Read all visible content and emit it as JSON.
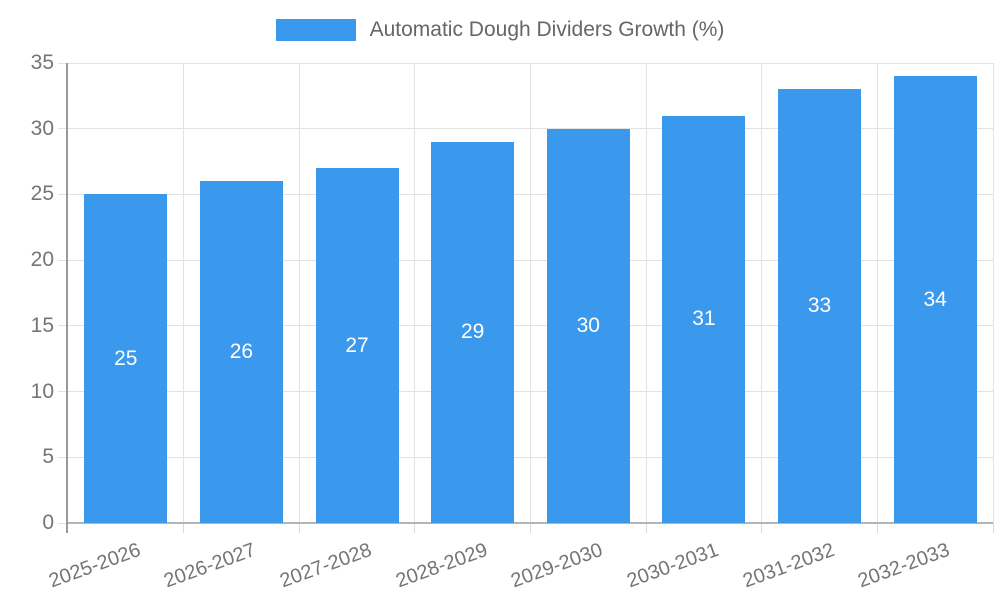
{
  "chart_data": {
    "type": "bar",
    "title": "Automatic Dough Dividers Growth (%)",
    "legend": "Automatic Dough Dividers Growth (%)",
    "legend_position": "top",
    "categories": [
      "2025-2026",
      "2026-2027",
      "2027-2028",
      "2028-2029",
      "2029-2030",
      "2030-2031",
      "2031-2032",
      "2032-2033"
    ],
    "values": [
      25,
      26,
      27,
      29,
      30,
      31,
      33,
      34
    ],
    "xlabel": "",
    "ylabel": "",
    "ylim": [
      0,
      35
    ],
    "yticks": [
      0,
      5,
      10,
      15,
      20,
      25,
      30,
      35
    ],
    "grid": true,
    "value_labels": "inside-center",
    "x_label_rotation_deg": -20,
    "colors": {
      "bar": "#3B99ED",
      "value_label": "#FFFFFF",
      "grid_line": "#E2E2E2",
      "tick_mark": "#D8D8D8",
      "y_axis_line": "#999999",
      "x_axis_line": "#B5B5B5",
      "tick_label": "#757575",
      "legend_text": "#666666",
      "background": "#FFFFFF"
    }
  }
}
